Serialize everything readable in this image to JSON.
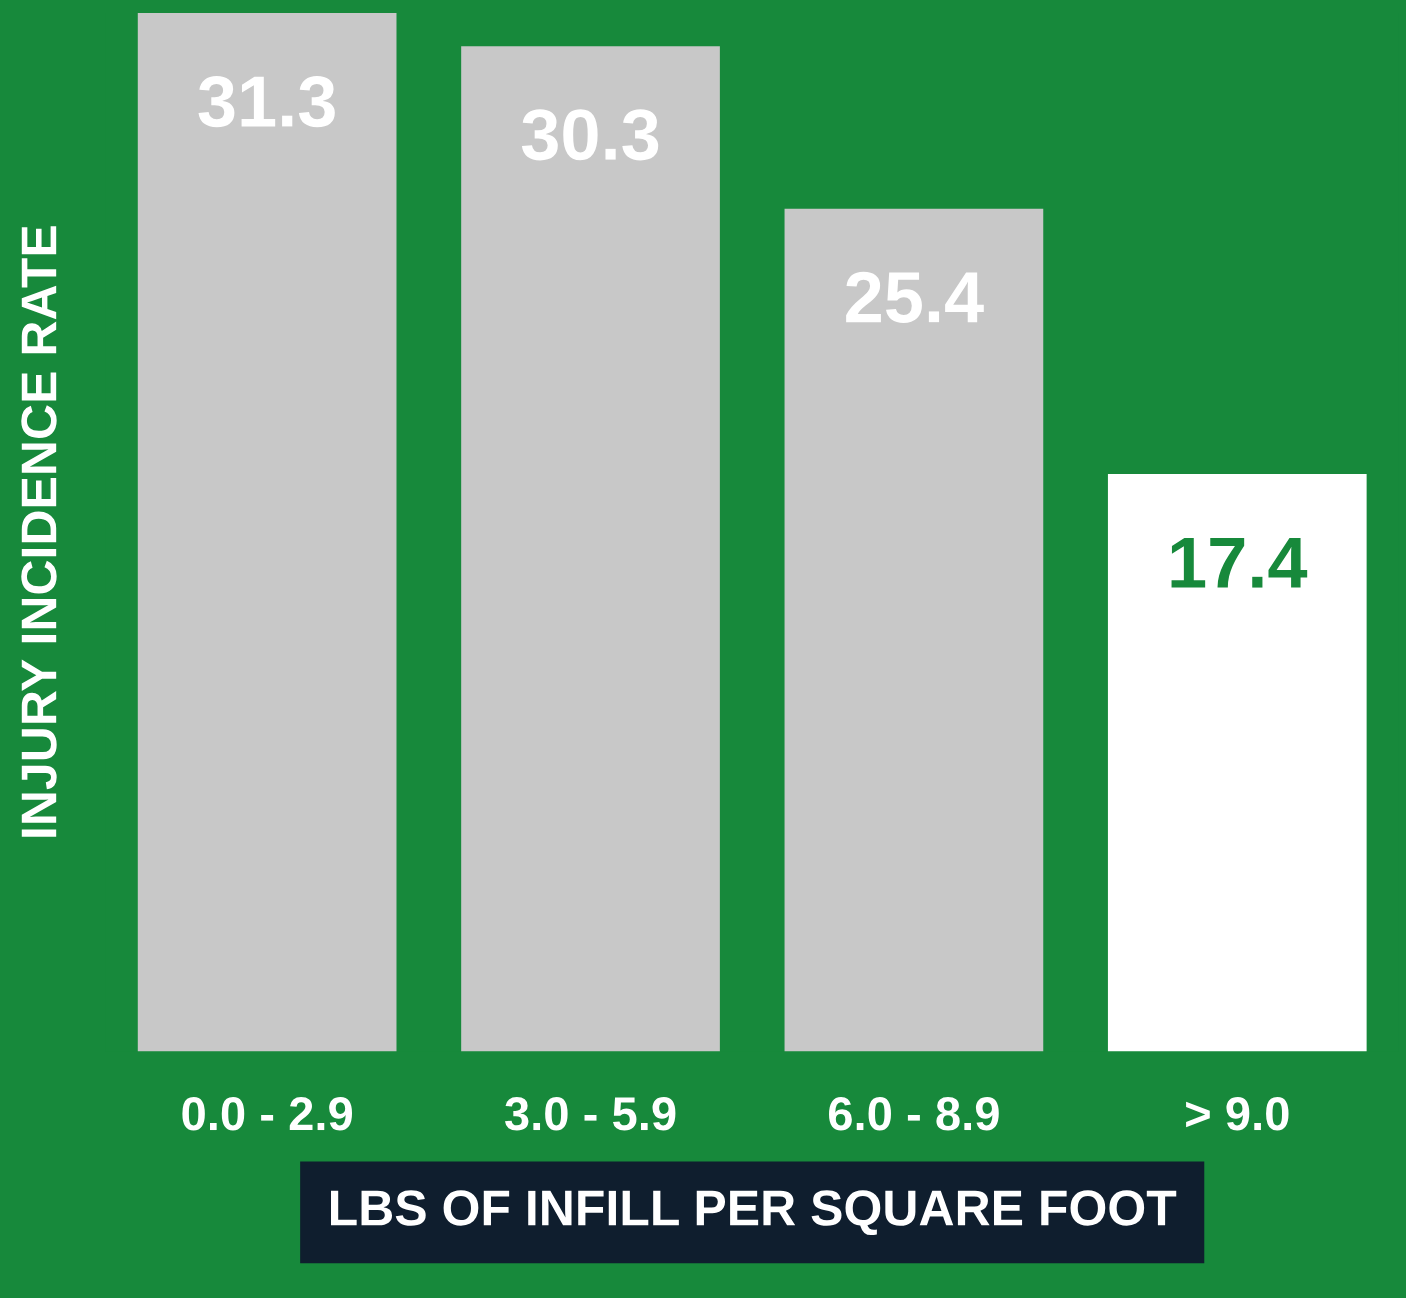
{
  "chart_data": {
    "type": "bar",
    "xlabel": "LBS OF INFILL PER SQUARE FOOT",
    "ylabel": "INJURY INCIDENCE RATE",
    "categories": [
      "0.0 - 2.9",
      "3.0 - 5.9",
      "6.0 - 8.9",
      "> 9.0"
    ],
    "values": [
      31.3,
      30.3,
      25.4,
      17.4
    ],
    "colors": [
      "#c8c8c8",
      "#c8c8c8",
      "#c8c8c8",
      "#ffffff"
    ],
    "data_labels": true,
    "grid": false,
    "legend": false
  }
}
